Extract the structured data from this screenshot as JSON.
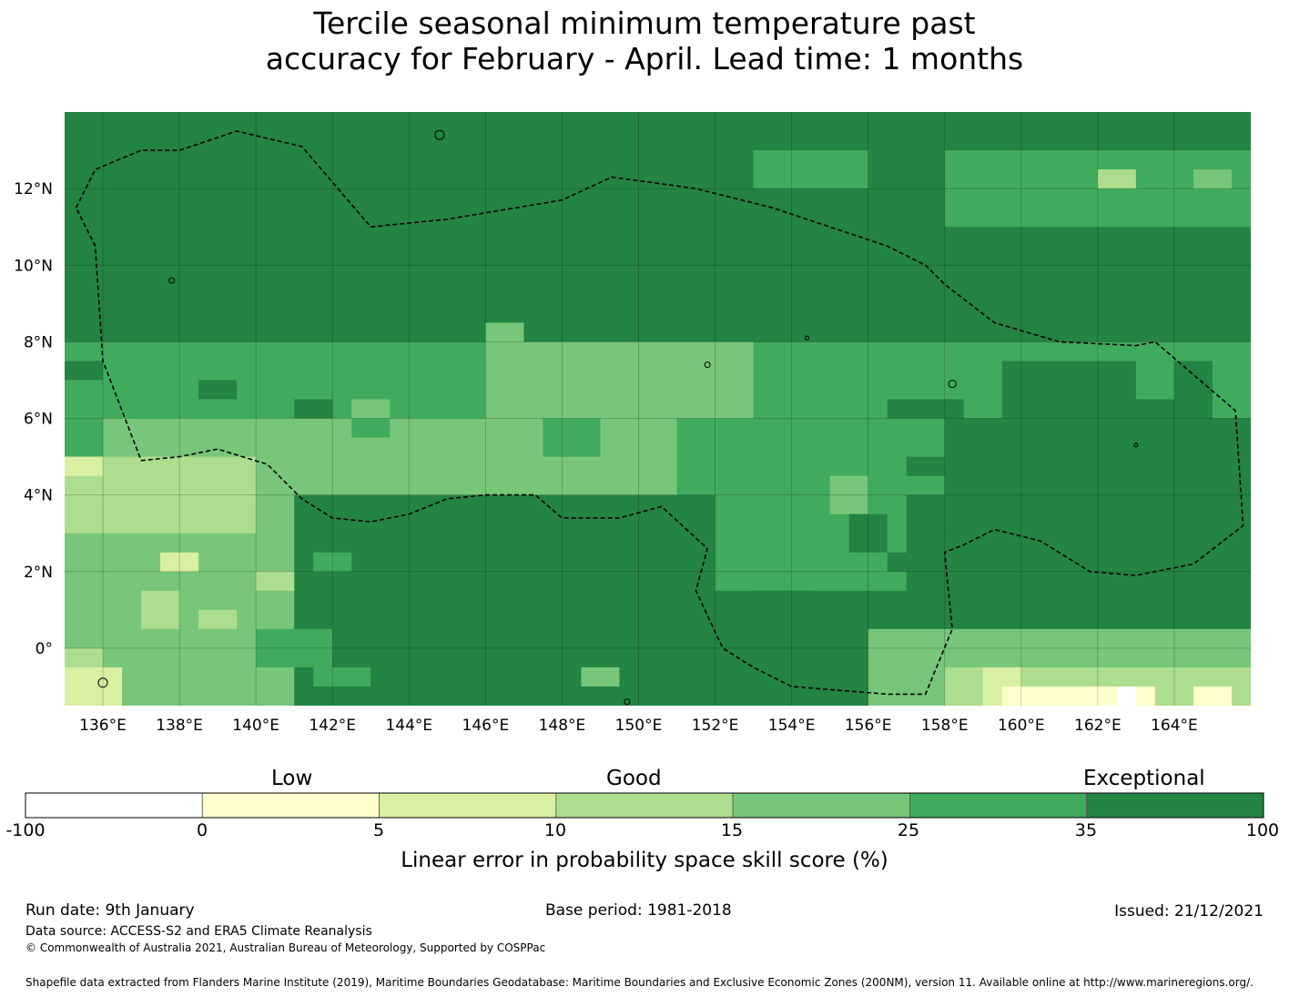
{
  "title": {
    "line1": "Tercile seasonal minimum temperature past",
    "line2": "accuracy for February - April. Lead time: 1 months"
  },
  "map": {
    "lon_labels": [
      "136°E",
      "138°E",
      "140°E",
      "142°E",
      "144°E",
      "146°E",
      "148°E",
      "150°E",
      "152°E",
      "154°E",
      "156°E",
      "158°E",
      "160°E",
      "162°E",
      "164°E"
    ],
    "lon_values": [
      136,
      138,
      140,
      142,
      144,
      146,
      148,
      150,
      152,
      154,
      156,
      158,
      160,
      162,
      164
    ],
    "lat_labels": [
      "12°N",
      "10°N",
      "8°N",
      "6°N",
      "4°N",
      "2°N",
      "0°"
    ],
    "lat_values": [
      12,
      10,
      8,
      6,
      4,
      2,
      0
    ],
    "extent": {
      "lon_min": 135.0,
      "lon_max": 166.0,
      "lat_min": -1.5,
      "lat_max": 14.0
    },
    "grid_lon_start": 135.0,
    "grid_lat_top": 14.0,
    "cell_deg": 0.833,
    "grid_rows": [
      "6666666666666666666666666666666666666666666666666666",
      "6666666666666666666666666666666666666666666666666666",
      "6666666666666666666666666666666666666666666666666666",
      "6666666666666666666666666666666666666666666666666666",
      "6666666666666666666666666666666666666666666666666666",
      "6666666666666666666666666666666666666666666666666666",
      "6666666666666666666666666666666666666666666666666666",
      "6666666666666666666666666666666666666666666666666666",
      "6666666666666666666666666666666666666666666666666666",
      "6666666666666666666666666666666666666666666666666666",
      "6666666666666666666666666666666666666666666666666666",
      "6666666666666666666666666666666666666666666666666666",
      "6666666666666666666666666666666666666666666666666666",
      "6666666666666666666666666666666666666666666666666666",
      "6666666666666666666666666666666666666666666666666666",
      "6666666666666666666666666666666666666666666666666666",
      "6666666666666666666666666666666666666666666666666666",
      "6666666666666666666666666666666666666666666666666666",
      "6666666666666666666666666666666666666666666666666666",
      "6666666666666666666666666666666666666666666666666666",
      "6666666666666666666666666666666666666666666666666666",
      "6666666666666666666666666666666666666666666666666666",
      "6666666666666666666666666666666666666666666666666666",
      "6666666666666666666666666666666666666666666666666666",
      "6666666666666666666666666666666666666666666666666666",
      "6666666666666666666666666666666666666666666666666666",
      "6666666666666666666666666666666666666666666666666666",
      "6666666666666666666666666666666666666666666666666666"
    ],
    "patches": [
      [
        -1.0,
        138.5,
        8.0,
        7.5,
        5
      ],
      [
        8.0,
        135.0,
        14.0,
        166.0,
        6
      ],
      [
        8.0,
        135.0,
        6.0,
        166.0,
        5
      ],
      [
        6.0,
        135.0,
        4.0,
        166.0,
        5
      ],
      [
        6.0,
        136.0,
        4.0,
        151.0,
        4
      ],
      [
        4.5,
        135.0,
        -1.5,
        141.0,
        4
      ],
      [
        5.0,
        135.0,
        3.0,
        140.0,
        3
      ],
      [
        5.0,
        135.0,
        4.5,
        136.0,
        2
      ],
      [
        2.5,
        137.5,
        2.0,
        138.5,
        2
      ],
      [
        2.0,
        140.0,
        1.5,
        141.0,
        3
      ],
      [
        8.0,
        146.0,
        5.0,
        148.0,
        4
      ],
      [
        8.0,
        148.0,
        5.5,
        153.0,
        4
      ],
      [
        7.5,
        147.5,
        5.5,
        149.5,
        4
      ],
      [
        4.0,
        152.0,
        1.5,
        157.0,
        5
      ],
      [
        3.5,
        145.0,
        2.5,
        148.0,
        6
      ],
      [
        3.0,
        143.0,
        1.0,
        145.5,
        6
      ],
      [
        1.0,
        145.0,
        0.0,
        146.5,
        6
      ],
      [
        3.0,
        150.0,
        1.5,
        151.5,
        6
      ],
      [
        1.5,
        153.0,
        1.0,
        154.5,
        6
      ],
      [
        2.5,
        156.5,
        2.0,
        158.0,
        6
      ],
      [
        7.5,
        159.5,
        2.5,
        165.0,
        6
      ],
      [
        6.0,
        158.0,
        3.0,
        166.0,
        6
      ],
      [
        2.5,
        159.5,
        1.0,
        164.5,
        6
      ],
      [
        7.5,
        163.0,
        6.5,
        164.0,
        5
      ],
      [
        13.0,
        153.0,
        12.0,
        156.0,
        5
      ],
      [
        13.0,
        158.0,
        11.0,
        166.0,
        5
      ],
      [
        12.5,
        164.5,
        12.0,
        165.5,
        4
      ],
      [
        12.5,
        162.0,
        12.0,
        163.0,
        3
      ],
      [
        0.5,
        156.0,
        -1.5,
        166.0,
        4
      ],
      [
        -0.5,
        158.0,
        -1.5,
        166.0,
        3
      ],
      [
        -0.5,
        159.0,
        -1.5,
        160.0,
        2
      ],
      [
        -1.0,
        159.5,
        -1.5,
        163.5,
        1
      ],
      [
        -1.0,
        162.5,
        -1.5,
        163.0,
        0
      ],
      [
        -1.0,
        163.5,
        -1.5,
        164.5,
        3
      ],
      [
        -1.0,
        164.5,
        -1.5,
        165.5,
        1
      ],
      [
        8.5,
        146.0,
        7.5,
        147.0,
        4
      ],
      [
        6.0,
        147.5,
        5.0,
        149.0,
        5
      ],
      [
        6.0,
        151.0,
        5.0,
        153.0,
        5
      ],
      [
        4.5,
        155.0,
        3.5,
        156.0,
        4
      ],
      [
        3.0,
        135.0,
        1.0,
        136.0,
        4
      ],
      [
        0.0,
        135.0,
        -1.0,
        136.0,
        3
      ],
      [
        -0.5,
        135.0,
        -1.5,
        136.5,
        2
      ],
      [
        1.5,
        137.0,
        0.5,
        138.0,
        3
      ],
      [
        1.0,
        138.5,
        0.5,
        139.5,
        3
      ],
      [
        0.5,
        140.0,
        -0.5,
        142.0,
        5
      ],
      [
        -0.5,
        141.5,
        -1.0,
        143.0,
        5
      ],
      [
        2.5,
        141.5,
        2.0,
        142.5,
        5
      ],
      [
        6.0,
        142.5,
        5.5,
        143.5,
        5
      ],
      [
        6.5,
        142.5,
        6.0,
        143.5,
        4
      ],
      [
        7.5,
        135.0,
        7.0,
        136.0,
        6
      ],
      [
        7.0,
        138.5,
        6.5,
        139.5,
        6
      ],
      [
        6.5,
        141.0,
        6.0,
        142.0,
        6
      ],
      [
        6.5,
        156.5,
        6.0,
        158.5,
        6
      ],
      [
        5.0,
        157.0,
        4.5,
        158.0,
        6
      ],
      [
        3.5,
        155.5,
        2.5,
        156.5,
        6
      ],
      [
        -0.5,
        148.5,
        -1.0,
        149.5,
        4
      ],
      [
        -0.5,
        151.0,
        -1.0,
        152.0,
        6
      ]
    ],
    "land_labels": []
  },
  "colorbar": {
    "category_labels": [
      "Low",
      "Good",
      "Exceptional"
    ],
    "ticks": [
      "-100",
      "0",
      "5",
      "10",
      "15",
      "25",
      "35",
      "100"
    ],
    "colors": [
      "#ffffff",
      "#ffffcc",
      "#d9f0a3",
      "#addd8e",
      "#78c679",
      "#41ab5d",
      "#238443"
    ],
    "title": "Linear error in probability space skill score (%)"
  },
  "footer": {
    "run_date": "Run date: 9th January",
    "base_period": "Base period: 1981-2018",
    "issued": "Issued: 21/12/2021",
    "data_source": "Data source: ACCESS-S2 and ERA5 Climate Reanalysis",
    "copyright": "© Commonwealth of Australia 2021, Australian Bureau of Meteorology, Supported by COSPPac",
    "shapefile": "Shapefile data extracted from Flanders Marine Institute (2019), Maritime Boundaries Geodatabase: Maritime Boundaries and Exclusive Economic Zones (200NM), version 11. Available online at http://www.marineregions.org/."
  }
}
